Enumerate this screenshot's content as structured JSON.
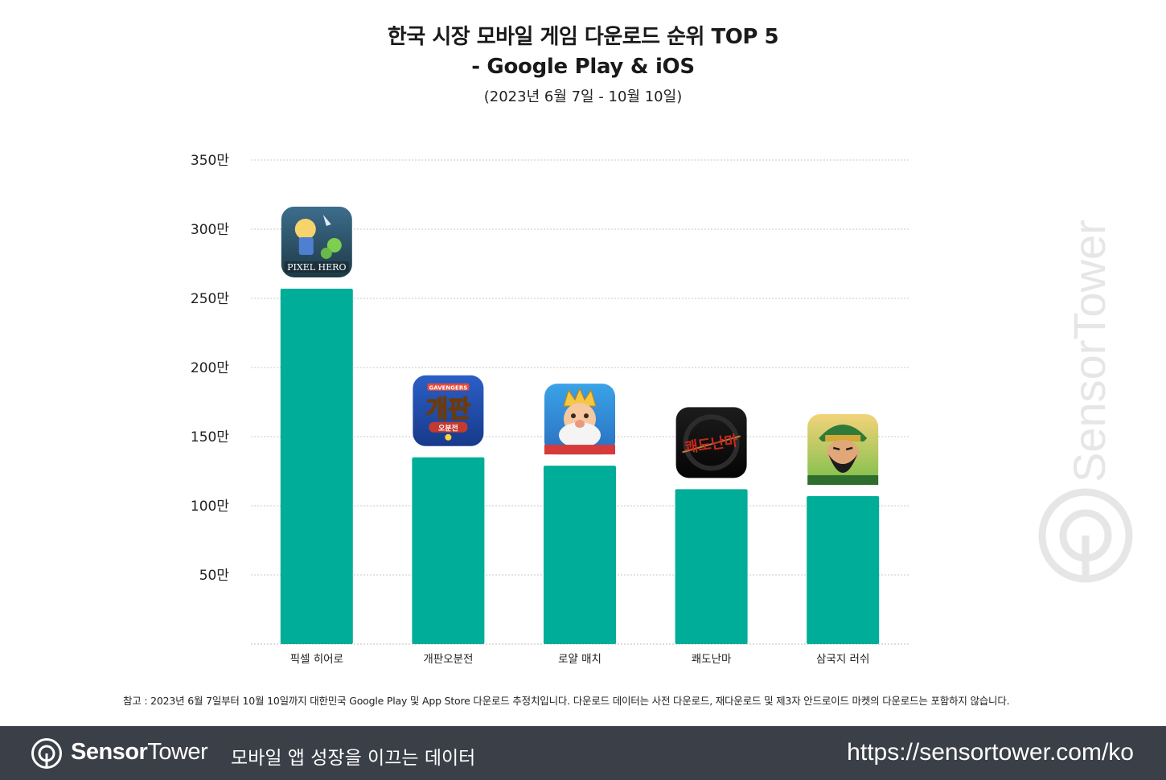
{
  "title": {
    "line1": "한국 시장 모바일 게임 다운로드 순위 TOP 5",
    "line2": "- Google Play & iOS",
    "subtitle": "(2023년 6월 7일 - 10월 10일)"
  },
  "chart_data": {
    "type": "bar",
    "title": "한국 시장 모바일 게임 다운로드 순위 TOP 5 - Google Play & iOS",
    "subtitle": "(2023년 6월 7일 - 10월 10일)",
    "categories": [
      "픽셀 히어로",
      "개판오분전",
      "로얄 매치",
      "쾌도난마",
      "삼국지 러쉬"
    ],
    "values": [
      2570000,
      1350000,
      1290000,
      1120000,
      1070000
    ],
    "ylim": [
      0,
      3500000
    ],
    "yticks": [
      500000,
      1000000,
      1500000,
      2000000,
      2500000,
      3000000,
      3500000
    ],
    "ytick_labels": [
      "50만",
      "100만",
      "150만",
      "200만",
      "250만",
      "300만",
      "350만"
    ],
    "xlabel": "",
    "ylabel": "",
    "grid": true,
    "bar_color": "#00ad98",
    "app_icons": [
      "pixel-hero-icon",
      "gaepan-icon",
      "royal-match-icon",
      "kwaedo-icon",
      "samguk-rush-icon"
    ]
  },
  "watermark": "SensorTower",
  "footnote": "참고 : 2023년 6월 7일부터 10월 10일까지 대한민국 Google Play 및 App Store 다운로드 추정치입니다. 다운로드 데이터는 사전 다운로드, 재다운로드 및 제3자 안드로이드 마켓의 다운로드는 포함하지 않습니다.",
  "footer": {
    "brand_bold": "Sensor",
    "brand_regular": "Tower",
    "tagline": "모바일 앱 성장을 이끄는 데이터",
    "url": "https://sensortower.com/ko"
  },
  "colors": {
    "bar": "#00ad98",
    "grid": "#c9c9c9",
    "footer_bg": "#3b3f47",
    "watermark": "#e6e6e6"
  }
}
